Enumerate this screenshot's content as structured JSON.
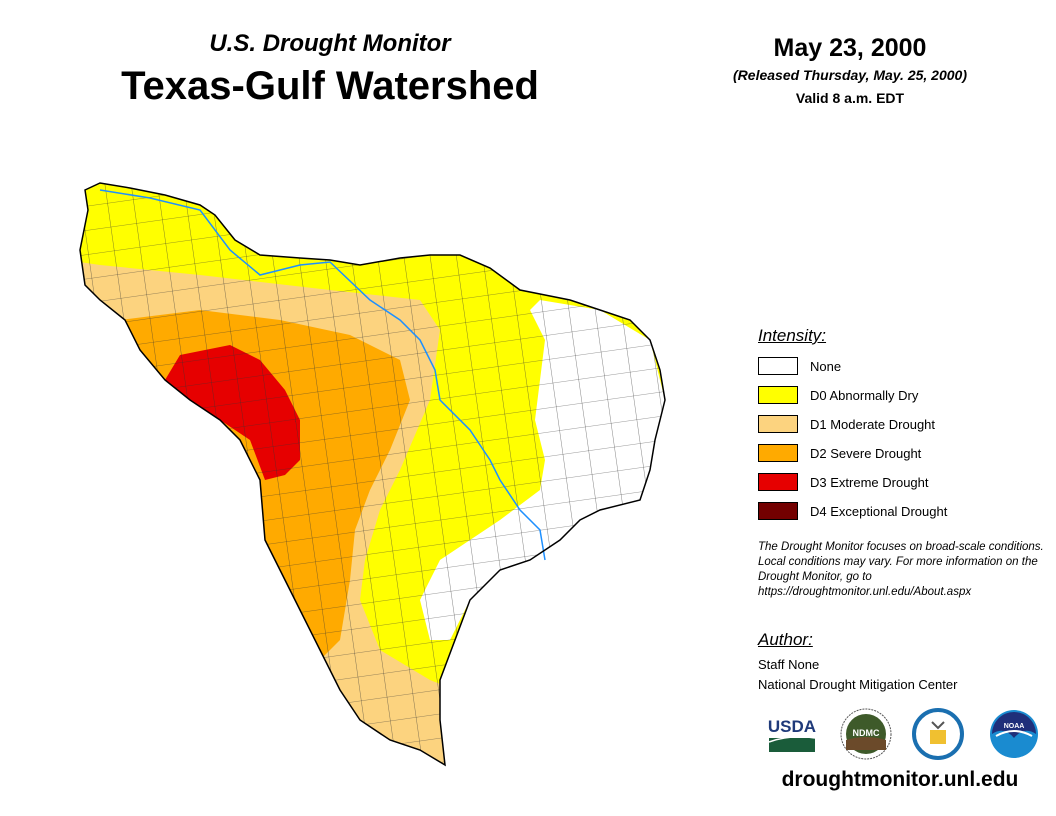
{
  "header": {
    "subtitle": "U.S. Drought Monitor",
    "title": "Texas-Gulf Watershed",
    "date": "May 23, 2000",
    "released": "(Released Thursday, May. 25, 2000)",
    "valid": "Valid 8 a.m. EDT"
  },
  "legend": {
    "title": "Intensity:",
    "items": [
      {
        "label": "None",
        "color": "#ffffff"
      },
      {
        "label": "D0 Abnormally Dry",
        "color": "#ffff00"
      },
      {
        "label": "D1 Moderate Drought",
        "color": "#fcd37f"
      },
      {
        "label": "D2 Severe Drought",
        "color": "#ffaa00"
      },
      {
        "label": "D3 Extreme Drought",
        "color": "#e60000"
      },
      {
        "label": "D4 Exceptional Drought",
        "color": "#730000"
      }
    ]
  },
  "note": "The Drought Monitor focuses on broad-scale conditions. Local conditions may vary. For more information on the Drought Monitor, go to https://droughtmonitor.unl.edu/About.aspx",
  "author": {
    "title": "Author:",
    "name": "Staff None",
    "org": "National Drought Mitigation Center"
  },
  "logos": {
    "usda": "USDA",
    "ndmc": "NDMC",
    "noaa": "NOAA"
  },
  "site": "droughtmonitor.unl.edu"
}
